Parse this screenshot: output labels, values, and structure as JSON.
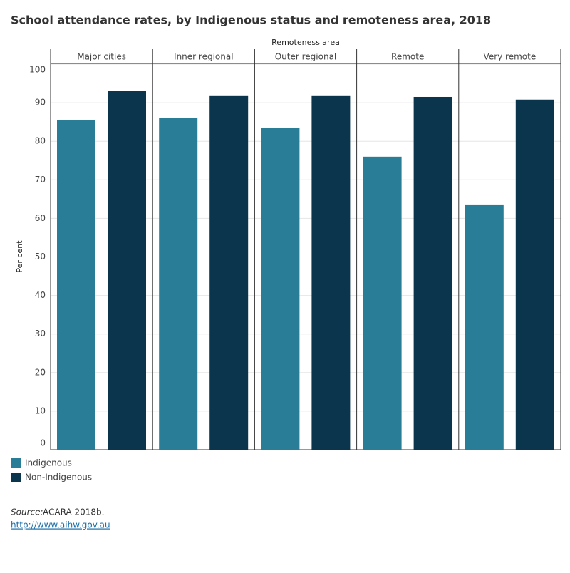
{
  "chart_data": {
    "type": "bar",
    "title": "School attendance rates, by Indigenous status and remoteness area, 2018",
    "x_label": "Remoteness area",
    "y_label": "Per cent",
    "categories": [
      "Major cities",
      "Inner regional",
      "Outer regional",
      "Remote",
      "Very remote"
    ],
    "series": [
      {
        "name": "Indigenous",
        "color": "#2a7d97",
        "values": [
          85.4,
          86.0,
          83.4,
          76.0,
          63.6
        ]
      },
      {
        "name": "Non-Indigenous",
        "color": "#0b354c",
        "values": [
          93.0,
          91.9,
          91.9,
          91.5,
          90.8
        ]
      }
    ],
    "ylim": [
      0,
      100
    ],
    "yticks": [
      0,
      10,
      20,
      30,
      40,
      50,
      60,
      70,
      80,
      90,
      100
    ],
    "grid": true
  },
  "footer": {
    "source_label": "Source:",
    "source_text": "ACARA 2018b.",
    "link": "http://www.aihw.gov.au"
  }
}
